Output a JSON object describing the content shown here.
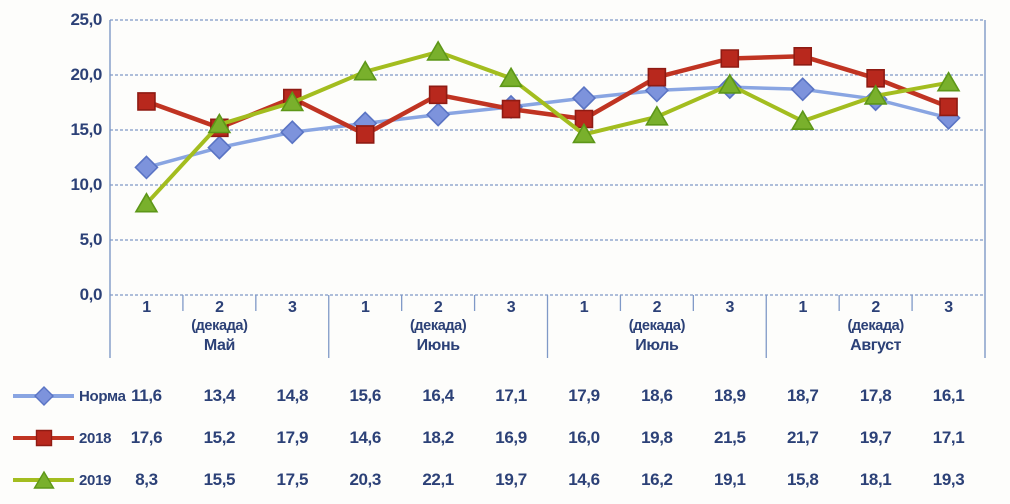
{
  "page": {
    "background": "#fdfdfb"
  },
  "colors": {
    "text": "#2c4177",
    "grid": "#7f99c7",
    "axis": "#7f99c7"
  },
  "chart_data": {
    "type": "line",
    "title": "",
    "xlabel": "",
    "ylabel": "",
    "ylim": [
      0,
      25
    ],
    "ytick_step": 5,
    "ytick_labels": [
      "0,0",
      "5,0",
      "10,0",
      "15,0",
      "20,0",
      "25,0"
    ],
    "grid": "horizontal dashed gridlines on",
    "legend_position": "left of data table below chart",
    "decimal_separator": ",",
    "months": [
      {
        "name": "Май",
        "sub": "(декада)",
        "decades": [
          "1",
          "2",
          "3"
        ]
      },
      {
        "name": "Июнь",
        "sub": "(декада)",
        "decades": [
          "1",
          "2",
          "3"
        ]
      },
      {
        "name": "Июль",
        "sub": "(декада)",
        "decades": [
          "1",
          "2",
          "3"
        ]
      },
      {
        "name": "Август",
        "sub": "(декада)",
        "decades": [
          "1",
          "2",
          "3"
        ]
      }
    ],
    "series": [
      {
        "name": "Норма",
        "marker": "diamond",
        "line_color": "#89a5e2",
        "marker_fill": "#7d93dc",
        "marker_stroke": "#5a74c4",
        "values": [
          11.6,
          13.4,
          14.8,
          15.6,
          16.4,
          17.1,
          17.9,
          18.6,
          18.9,
          18.7,
          17.8,
          16.1
        ]
      },
      {
        "name": "2018",
        "marker": "square",
        "line_color": "#c03422",
        "marker_fill": "#b8281d",
        "marker_stroke": "#8f1b13",
        "values": [
          17.6,
          15.2,
          17.9,
          14.6,
          18.2,
          16.9,
          16.0,
          19.8,
          21.5,
          21.7,
          19.7,
          17.1
        ]
      },
      {
        "name": "2019",
        "marker": "triangle",
        "line_color": "#a3bd1f",
        "marker_fill": "#79b02c",
        "marker_stroke": "#5d9718",
        "values": [
          8.3,
          15.5,
          17.5,
          20.3,
          22.1,
          19.7,
          14.6,
          16.2,
          19.1,
          15.8,
          18.1,
          19.3
        ]
      }
    ]
  }
}
